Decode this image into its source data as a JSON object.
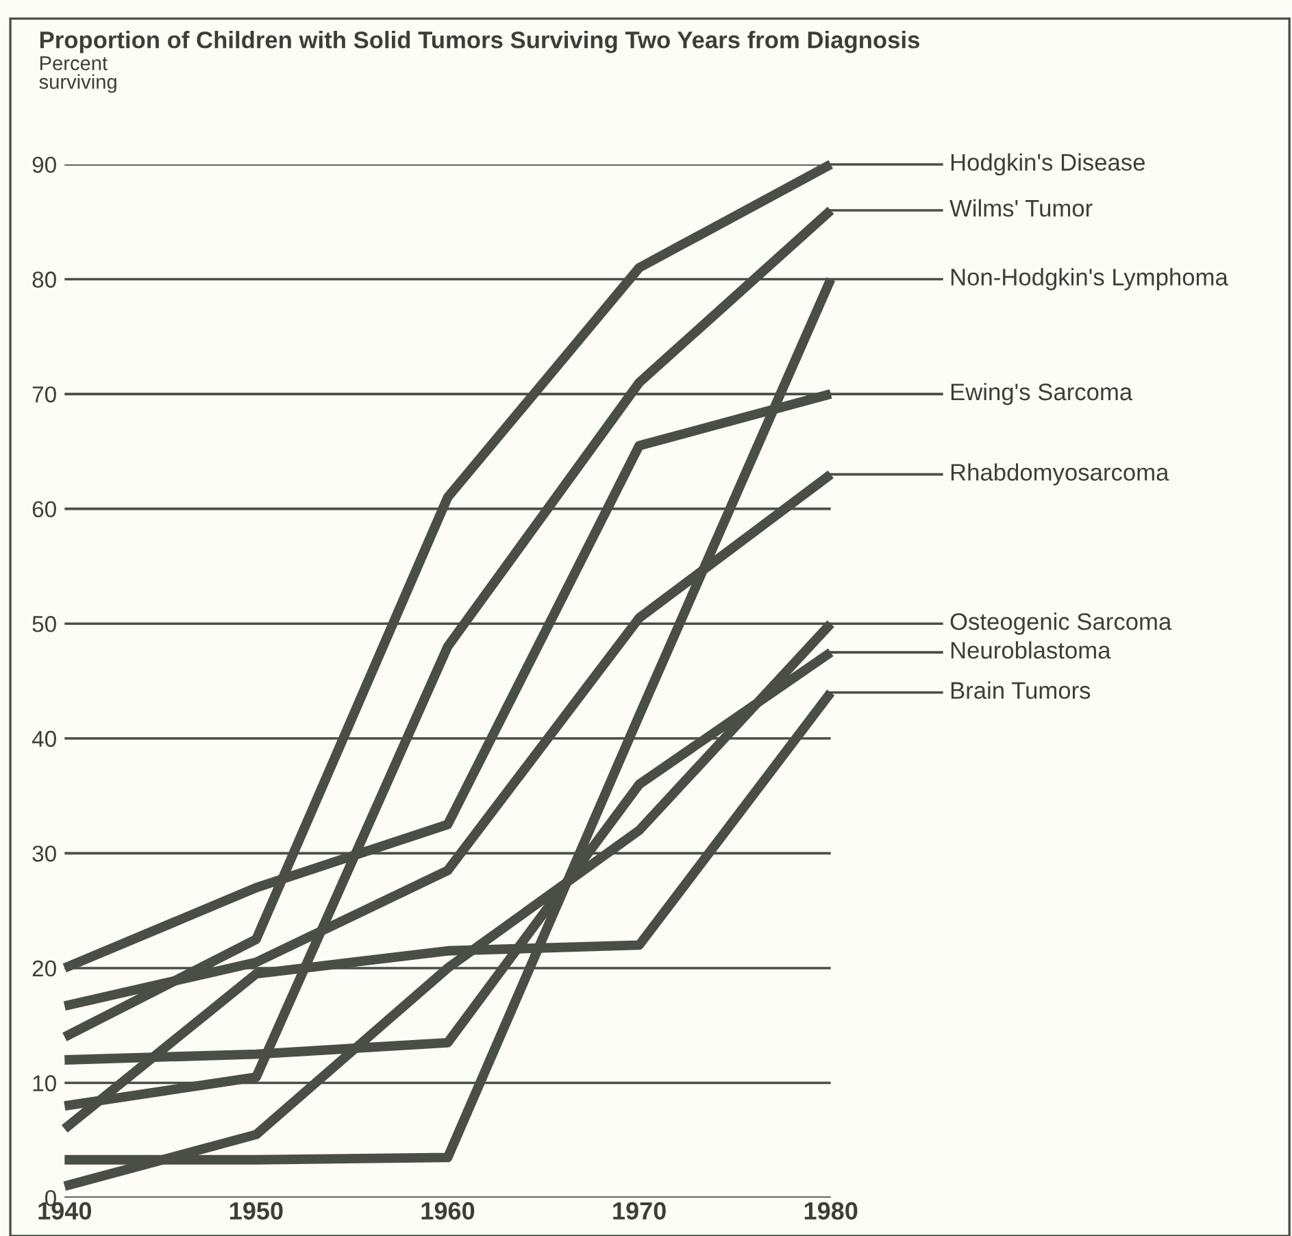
{
  "chart_data": {
    "type": "line",
    "title": "Proportion of Children with Solid Tumors Surviving Two Years from Diagnosis",
    "ylabel": "Percent\nsurviving",
    "x": [
      1940,
      1950,
      1960,
      1970,
      1980
    ],
    "series": [
      {
        "name": "Hodgkin's Disease",
        "color": "#4a4f45",
        "values": [
          14,
          22.5,
          61,
          81,
          90
        ]
      },
      {
        "name": "Wilms' Tumor",
        "color": "#4a4f45",
        "values": [
          8,
          10.5,
          48,
          71,
          86
        ]
      },
      {
        "name": "Non-Hodgkin's Lymphoma",
        "color": "#4a4f45",
        "values": [
          3.3,
          3.3,
          3.5,
          42,
          80
        ]
      },
      {
        "name": "Ewing's Sarcoma",
        "color": "#4a4f45",
        "values": [
          20,
          27,
          32.5,
          65.5,
          70
        ]
      },
      {
        "name": "Rhabdomyosarcoma",
        "color": "#4a4f45",
        "values": [
          16.7,
          20.5,
          28.5,
          50.5,
          63
        ]
      },
      {
        "name": "Osteogenic Sarcoma",
        "color": "#4a4f45",
        "values": [
          1,
          5.5,
          20,
          32,
          50
        ]
      },
      {
        "name": "Neuroblastoma",
        "color": "#4a4f45",
        "values": [
          12,
          12.5,
          13.5,
          36,
          47.5
        ]
      },
      {
        "name": "Brain Tumors",
        "color": "#4a4f45",
        "values": [
          6,
          19.5,
          21.5,
          22,
          44
        ]
      }
    ],
    "xlim": [
      1940,
      1980
    ],
    "xticks": [
      1940,
      1950,
      1960,
      1970,
      1980
    ],
    "ylim": [
      0,
      90
    ],
    "yticks": [
      0,
      10,
      20,
      30,
      40,
      50,
      60,
      70,
      80,
      90
    ],
    "grid": "y",
    "legend": "right",
    "marker": "none",
    "line_style": "solid"
  }
}
